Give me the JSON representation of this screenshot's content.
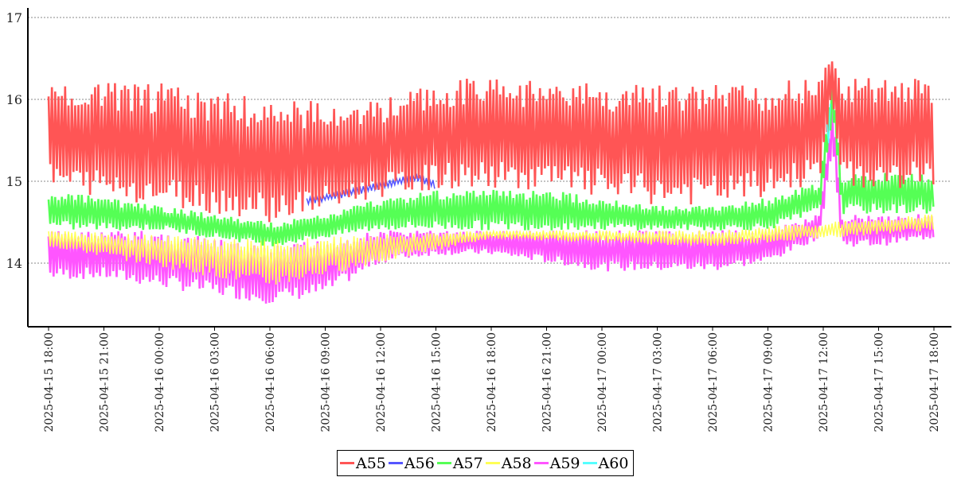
{
  "chart_data": {
    "type": "line",
    "title": "",
    "xlabel": "",
    "ylabel": "",
    "ylim": [
      13.22,
      17.1
    ],
    "yticks": [
      14,
      15,
      16,
      17
    ],
    "x_start_label": "2025-04-15 18:00",
    "x_unit": "hours since 2025-04-15 18:00",
    "xlim": [
      0,
      48
    ],
    "xticks": [
      {
        "h": 0,
        "label": "2025-04-15 18:00"
      },
      {
        "h": 3,
        "label": "2025-04-15 21:00"
      },
      {
        "h": 6,
        "label": "2025-04-16 00:00"
      },
      {
        "h": 9,
        "label": "2025-04-16 03:00"
      },
      {
        "h": 12,
        "label": "2025-04-16 06:00"
      },
      {
        "h": 15,
        "label": "2025-04-16 09:00"
      },
      {
        "h": 18,
        "label": "2025-04-16 12:00"
      },
      {
        "h": 21,
        "label": "2025-04-16 15:00"
      },
      {
        "h": 24,
        "label": "2025-04-16 18:00"
      },
      {
        "h": 27,
        "label": "2025-04-16 21:00"
      },
      {
        "h": 30,
        "label": "2025-04-17 00:00"
      },
      {
        "h": 33,
        "label": "2025-04-17 03:00"
      },
      {
        "h": 36,
        "label": "2025-04-17 06:00"
      },
      {
        "h": 39,
        "label": "2025-04-17 09:00"
      },
      {
        "h": 42,
        "label": "2025-04-17 12:00"
      },
      {
        "h": 45,
        "label": "2025-04-17 15:00"
      },
      {
        "h": 48,
        "label": "2025-04-17 18:00"
      }
    ],
    "grid": "horizontal dashed",
    "legend_position": "bottom-center",
    "series_format": "envelope points [hour, low, high]",
    "series": [
      {
        "name": "A59",
        "color": "#ff55ff",
        "points": [
          [
            0,
            13.8,
            14.4
          ],
          [
            3,
            13.8,
            14.4
          ],
          [
            6,
            13.7,
            14.4
          ],
          [
            9,
            13.6,
            14.3
          ],
          [
            12,
            13.5,
            14.2
          ],
          [
            15,
            13.6,
            14.3
          ],
          [
            18,
            14.0,
            14.4
          ],
          [
            21,
            14.1,
            14.4
          ],
          [
            24,
            14.1,
            14.4
          ],
          [
            27,
            14.0,
            14.4
          ],
          [
            30,
            13.9,
            14.4
          ],
          [
            33,
            13.9,
            14.4
          ],
          [
            36,
            13.9,
            14.4
          ],
          [
            39,
            14.0,
            14.4
          ],
          [
            41.8,
            14.3,
            14.6
          ],
          [
            42.5,
            15.4,
            16.0
          ],
          [
            43,
            14.2,
            14.6
          ],
          [
            45,
            14.2,
            14.6
          ],
          [
            48,
            14.3,
            14.6
          ]
        ]
      },
      {
        "name": "A58",
        "color": "#ffff55",
        "points": [
          [
            0,
            14.2,
            14.4
          ],
          [
            12,
            13.7,
            14.3
          ],
          [
            24,
            14.3,
            14.4
          ],
          [
            36,
            14.2,
            14.4
          ],
          [
            48,
            14.4,
            14.6
          ]
        ]
      },
      {
        "name": "A57",
        "color": "#55ff55",
        "points": [
          [
            0,
            14.4,
            14.9
          ],
          [
            3,
            14.4,
            14.8
          ],
          [
            6,
            14.4,
            14.7
          ],
          [
            9,
            14.3,
            14.6
          ],
          [
            12,
            14.2,
            14.5
          ],
          [
            15,
            14.3,
            14.6
          ],
          [
            18,
            14.4,
            14.8
          ],
          [
            21,
            14.4,
            14.9
          ],
          [
            24,
            14.4,
            14.9
          ],
          [
            27,
            14.4,
            14.9
          ],
          [
            30,
            14.4,
            14.8
          ],
          [
            33,
            14.4,
            14.7
          ],
          [
            36,
            14.4,
            14.7
          ],
          [
            39,
            14.4,
            14.8
          ],
          [
            41.8,
            14.6,
            15.0
          ],
          [
            42.5,
            15.8,
            16.3
          ],
          [
            43,
            14.6,
            15.1
          ],
          [
            45,
            14.6,
            15.1
          ],
          [
            48,
            14.6,
            15.1
          ]
        ]
      },
      {
        "name": "A56",
        "color": "#5555ff",
        "points": [
          [
            14,
            14.7,
            14.8
          ],
          [
            16,
            14.8,
            14.9
          ],
          [
            18,
            14.9,
            15.0
          ],
          [
            20,
            15.0,
            15.1
          ],
          [
            21,
            14.9,
            15.0
          ]
        ]
      },
      {
        "name": "A55",
        "color": "#ff5555",
        "points": [
          [
            0,
            14.9,
            16.2
          ],
          [
            3,
            14.8,
            16.2
          ],
          [
            6,
            14.7,
            16.2
          ],
          [
            9,
            14.6,
            16.1
          ],
          [
            12,
            14.5,
            16.0
          ],
          [
            15,
            14.6,
            16.0
          ],
          [
            18,
            14.8,
            16.0
          ],
          [
            21,
            14.9,
            16.2
          ],
          [
            24,
            14.9,
            16.3
          ],
          [
            27,
            14.9,
            16.2
          ],
          [
            30,
            14.8,
            16.2
          ],
          [
            33,
            14.7,
            16.2
          ],
          [
            36,
            14.7,
            16.2
          ],
          [
            39,
            14.8,
            16.2
          ],
          [
            41.8,
            15.0,
            16.3
          ],
          [
            42.5,
            16.0,
            16.5
          ],
          [
            43,
            14.9,
            16.3
          ],
          [
            45,
            14.9,
            16.3
          ],
          [
            48,
            14.9,
            16.3
          ]
        ]
      },
      {
        "name": "A60",
        "color": "#55ffff",
        "points": [
          [
            42.2,
            15.3,
            15.8
          ],
          [
            42.4,
            15.6,
            16.0
          ]
        ]
      }
    ],
    "legend": [
      "A55",
      "A56",
      "A57",
      "A58",
      "A59",
      "A60"
    ],
    "legend_colors": [
      "#ff5555",
      "#5555ff",
      "#55ff55",
      "#ffff55",
      "#ff55ff",
      "#55ffff"
    ]
  }
}
